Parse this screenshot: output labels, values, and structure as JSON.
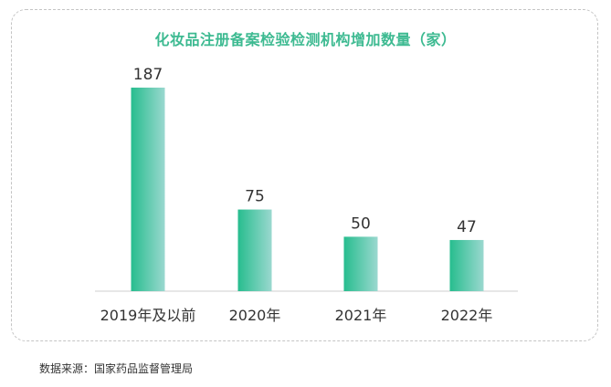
{
  "chart_data": {
    "type": "bar",
    "title": "化妆品注册备案检验检测机构增加数量（家）",
    "categories": [
      "2019年及以前",
      "2020年",
      "2021年",
      "2022年"
    ],
    "values": [
      187,
      75,
      50,
      47
    ],
    "xlabel": "",
    "ylabel": "",
    "ylim": [
      0,
      187
    ],
    "grid": false,
    "legend": "none",
    "colors": {
      "bar_start": "#27bd8e",
      "bar_end": "#9ad8cf",
      "title": "#3dba91"
    }
  },
  "source": "数据来源：国家药品监督管理局"
}
